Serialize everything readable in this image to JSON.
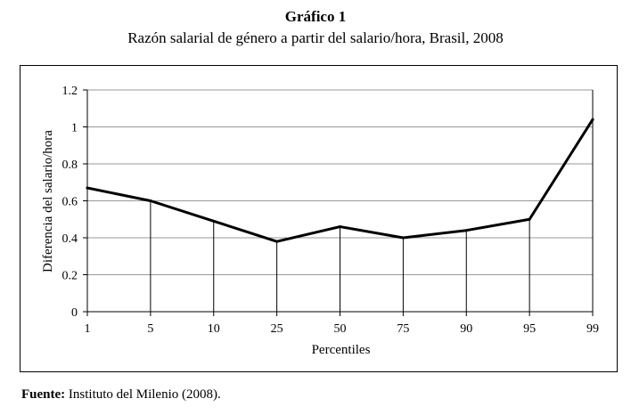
{
  "header": {
    "title": "Gráfico 1",
    "subtitle": "Razón salarial de género a partir del salario/hora, Brasil, 2008"
  },
  "source": {
    "label": "Fuente:",
    "text": " Instituto del Milenio (2008)."
  },
  "chart_data": {
    "type": "line",
    "title": "",
    "xlabel": "Percentiles",
    "ylabel": "Diferencia del salario/hora",
    "categories": [
      "1",
      "5",
      "10",
      "25",
      "50",
      "75",
      "90",
      "95",
      "99"
    ],
    "series": [
      {
        "values": [
          0.67,
          0.6,
          0.49,
          0.38,
          0.46,
          0.4,
          0.44,
          0.5,
          1.04
        ]
      }
    ],
    "ylim": [
      0,
      1.2
    ],
    "yticks": [
      "0",
      "0.2",
      "0.4",
      "0.6",
      "0.8",
      "1",
      "1.2"
    ],
    "grid": true,
    "legend": "none",
    "drop_lines": true,
    "colors": {
      "line": "#000000",
      "grid": "#999999"
    }
  }
}
